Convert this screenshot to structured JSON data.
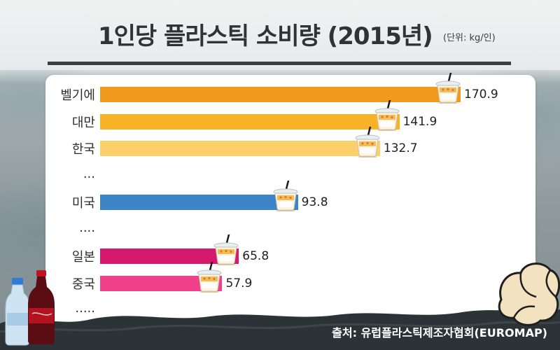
{
  "header": {
    "title": "1인당 플라스틱 소비량 (2015년)",
    "unit": "(단위: kg/인)"
  },
  "chart_data": {
    "type": "bar",
    "orientation": "horizontal",
    "title": "1인당 플라스틱 소비량 (2015년)",
    "unit": "kg/인",
    "xlim": [
      0,
      170.9
    ],
    "rows": [
      {
        "label": "벨기에",
        "value": 170.9,
        "display": "170.9",
        "color": "#f29a1e"
      },
      {
        "label": "대만",
        "value": 141.9,
        "display": "141.9",
        "color": "#f7b325"
      },
      {
        "label": "한국",
        "value": 132.7,
        "display": "132.7",
        "color": "#fbd068"
      },
      {
        "label": "...",
        "value": null,
        "display": ""
      },
      {
        "label": "미국",
        "value": 93.8,
        "display": "93.8",
        "color": "#3d85c6"
      },
      {
        "label": "....",
        "value": null,
        "display": ""
      },
      {
        "label": "일본",
        "value": 65.8,
        "display": "65.8",
        "color": "#d6196c"
      },
      {
        "label": "중국",
        "value": 57.9,
        "display": "57.9",
        "color": "#f0408a"
      },
      {
        "label": ".....",
        "value": null,
        "display": ""
      }
    ]
  },
  "footer": {
    "source": "출처: 유럽플라스틱제조자협회(EUROMAP)"
  },
  "icons": [
    "plastic-cup-icon",
    "soda-bottle-icon",
    "water-bottle-icon",
    "plastic-bag-icon"
  ]
}
